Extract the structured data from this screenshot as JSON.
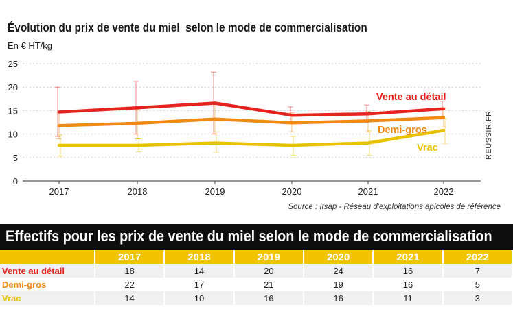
{
  "chart_data": {
    "type": "line",
    "title": "Évolution du prix de vente du miel  selon le mode de commercialisation",
    "ylabel": "En € HT/kg",
    "xlabel": "",
    "categories": [
      "2017",
      "2018",
      "2019",
      "2020",
      "2021",
      "2022"
    ],
    "ylim": [
      0,
      25
    ],
    "yticks": [
      0,
      5,
      10,
      15,
      20,
      25
    ],
    "grid": true,
    "series": [
      {
        "name": "Vente au détail",
        "color": "#e52420",
        "values": [
          14.7,
          15.6,
          16.6,
          14.0,
          14.3,
          15.4
        ],
        "err_low": [
          9.5,
          10.0,
          10.0,
          12.3,
          12.5,
          13.3
        ],
        "err_high": [
          20.0,
          21.2,
          23.2,
          15.8,
          16.2,
          17.0
        ]
      },
      {
        "name": "Demi-gros",
        "color": "#ef8a15",
        "values": [
          11.8,
          12.3,
          13.2,
          12.4,
          12.8,
          13.5
        ],
        "err_low": [
          9.0,
          9.0,
          10.0,
          10.5,
          10.5,
          11.5
        ],
        "err_high": [
          14.5,
          15.2,
          16.3,
          14.5,
          14.8,
          15.5
        ]
      },
      {
        "name": "Vrac",
        "color": "#e8c200",
        "values": [
          7.6,
          7.6,
          8.1,
          7.6,
          8.1,
          10.8
        ],
        "err_low": [
          5.3,
          6.2,
          6.0,
          5.5,
          5.5,
          8.0
        ],
        "err_high": [
          9.8,
          9.0,
          10.5,
          9.5,
          10.8,
          13.3
        ]
      }
    ],
    "source": "Source : Itsap - Réseau d'exploitations apicoles de référence"
  },
  "watermark": "REUSSIR.FR",
  "table": {
    "title": "Effectifs pour les prix de vente du miel selon le mode de commercialisation",
    "years": [
      "2017",
      "2018",
      "2019",
      "2020",
      "2021",
      "2022"
    ],
    "rows": [
      {
        "label": "Vente au détail",
        "color": "#e52420",
        "cells": [
          "18",
          "14",
          "20",
          "24",
          "16",
          "7"
        ]
      },
      {
        "label": "Demi-gros",
        "color": "#ef8a15",
        "cells": [
          "22",
          "17",
          "21",
          "19",
          "16",
          "5"
        ]
      },
      {
        "label": "Vrac",
        "color": "#e8c200",
        "cells": [
          "14",
          "10",
          "16",
          "16",
          "11",
          "3"
        ]
      }
    ]
  }
}
